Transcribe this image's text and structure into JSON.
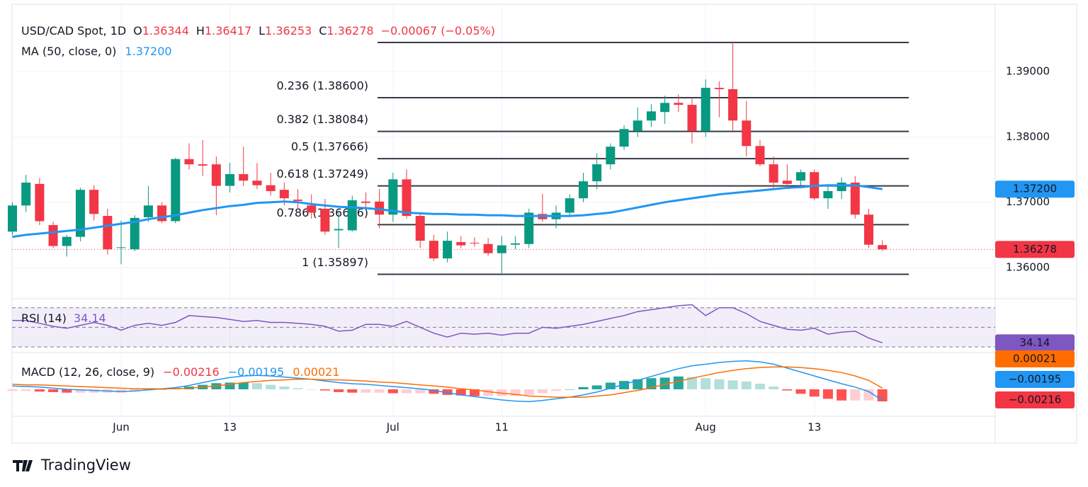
{
  "chart_data": {
    "type": "candlestick",
    "header": {
      "symbol": "USD/CAD Spot, 1D",
      "o_key": "O",
      "o": "1.36344",
      "h_key": "H",
      "h": "1.36417",
      "l_key": "L",
      "l": "1.36253",
      "c_key": "C",
      "c": "1.36278",
      "change": "−0.00067 (−0.05%)"
    },
    "categories": [
      null,
      null,
      null,
      null,
      null,
      null,
      null,
      null,
      "Jun",
      null,
      null,
      null,
      null,
      null,
      null,
      null,
      "13",
      null,
      null,
      null,
      null,
      null,
      null,
      null,
      null,
      null,
      null,
      null,
      "Jul",
      null,
      null,
      null,
      null,
      null,
      null,
      null,
      "11",
      null,
      null,
      null,
      null,
      null,
      null,
      null,
      null,
      null,
      null,
      null,
      null,
      null,
      null,
      "Aug",
      null,
      null,
      null,
      null,
      null,
      null,
      null,
      "13",
      null,
      null,
      null,
      null,
      null
    ],
    "candles": {
      "up_color": "#089981",
      "down_color": "#f23645",
      "open": [
        1.3655,
        1.3695,
        1.3728,
        1.3665,
        1.3633,
        1.3647,
        1.3719,
        1.3679,
        1.363,
        1.3628,
        1.3677,
        1.3695,
        1.3671,
        1.3766,
        1.3758,
        1.3758,
        1.3725,
        1.3743,
        1.3733,
        1.3726,
        1.3719,
        1.3704,
        1.3695,
        1.369,
        1.3657,
        1.3657,
        1.3701,
        1.3701,
        1.3681,
        1.3735,
        1.3679,
        1.3641,
        1.3614,
        1.3639,
        1.3638,
        1.3636,
        1.3622,
        1.3635,
        1.3636,
        1.3682,
        1.3674,
        1.3684,
        1.3706,
        1.3732,
        1.3758,
        1.3785,
        1.3809,
        1.3825,
        1.3838,
        1.3852,
        1.3849,
        1.3809,
        1.3875,
        1.3873,
        1.3825,
        1.3786,
        1.3758,
        1.3733,
        1.3733,
        1.3746,
        1.3706,
        1.3717,
        1.373,
        1.3681,
        1.36344
      ],
      "high": [
        1.37,
        1.3742,
        1.3737,
        1.367,
        1.365,
        1.3722,
        1.3726,
        1.369,
        1.3672,
        1.368,
        1.3725,
        1.37,
        1.3768,
        1.379,
        1.3795,
        1.377,
        1.376,
        1.3785,
        1.376,
        1.3745,
        1.373,
        1.372,
        1.3712,
        1.3705,
        1.3685,
        1.371,
        1.3715,
        1.372,
        1.3745,
        1.375,
        1.3685,
        1.365,
        1.3655,
        1.3648,
        1.3646,
        1.3645,
        1.3648,
        1.3648,
        1.369,
        1.3713,
        1.3695,
        1.3712,
        1.3745,
        1.3775,
        1.379,
        1.3818,
        1.3845,
        1.385,
        1.3863,
        1.3865,
        1.386,
        1.3888,
        1.3885,
        1.3946,
        1.3855,
        1.3795,
        1.377,
        1.3758,
        1.375,
        1.375,
        1.3725,
        1.3738,
        1.374,
        1.369,
        1.36417
      ],
      "low": [
        1.365,
        1.3685,
        1.3665,
        1.363,
        1.3617,
        1.364,
        1.3672,
        1.362,
        1.3605,
        1.3625,
        1.367,
        1.3668,
        1.3668,
        1.375,
        1.374,
        1.368,
        1.3715,
        1.3725,
        1.372,
        1.371,
        1.3695,
        1.369,
        1.3675,
        1.365,
        1.363,
        1.3655,
        1.369,
        1.366,
        1.367,
        1.3675,
        1.363,
        1.361,
        1.3608,
        1.363,
        1.3632,
        1.3618,
        1.359,
        1.3628,
        1.363,
        1.367,
        1.366,
        1.368,
        1.37,
        1.372,
        1.375,
        1.378,
        1.38,
        1.3815,
        1.382,
        1.3838,
        1.379,
        1.38,
        1.383,
        1.381,
        1.377,
        1.3755,
        1.372,
        1.3722,
        1.3725,
        1.3703,
        1.369,
        1.3705,
        1.3675,
        1.363,
        1.36253
      ],
      "close": [
        1.3695,
        1.373,
        1.3671,
        1.3633,
        1.3647,
        1.3719,
        1.3682,
        1.3628,
        1.3631,
        1.3676,
        1.3695,
        1.3671,
        1.3766,
        1.3758,
        1.3756,
        1.3725,
        1.3743,
        1.3733,
        1.3726,
        1.3717,
        1.3706,
        1.3702,
        1.3684,
        1.3655,
        1.3659,
        1.3703,
        1.3699,
        1.3681,
        1.3735,
        1.3679,
        1.3641,
        1.3614,
        1.3641,
        1.3634,
        1.3637,
        1.3622,
        1.3634,
        1.3637,
        1.3684,
        1.3674,
        1.3684,
        1.3706,
        1.3732,
        1.3758,
        1.3785,
        1.3812,
        1.3825,
        1.3839,
        1.3852,
        1.3849,
        1.3809,
        1.3875,
        1.3873,
        1.3825,
        1.3786,
        1.3758,
        1.373,
        1.3728,
        1.3746,
        1.3706,
        1.3717,
        1.373,
        1.3681,
        1.3635,
        1.36278
      ]
    },
    "last_price": {
      "value": 1.36278,
      "label": "1.36278",
      "color": "#f23645"
    },
    "ma": {
      "name": "MA (50, close, 0)",
      "color": "#2196f3",
      "last": {
        "value": 1.372,
        "label": "1.37200"
      },
      "values": [
        1.3647,
        1.365,
        1.3652,
        1.3654,
        1.3656,
        1.3658,
        1.3661,
        1.3664,
        1.3667,
        1.367,
        1.3674,
        1.3677,
        1.368,
        1.3684,
        1.3688,
        1.3691,
        1.3694,
        1.3696,
        1.3699,
        1.37,
        1.3701,
        1.37,
        1.3697,
        1.3695,
        1.3693,
        1.3692,
        1.3691,
        1.3689,
        1.3687,
        1.3684,
        1.3683,
        1.3682,
        1.3682,
        1.3681,
        1.3681,
        1.368,
        1.368,
        1.3679,
        1.3679,
        1.3679,
        1.3679,
        1.3679,
        1.368,
        1.3682,
        1.3684,
        1.3688,
        1.3692,
        1.3696,
        1.37,
        1.3703,
        1.3706,
        1.3709,
        1.3712,
        1.3714,
        1.3716,
        1.3718,
        1.372,
        1.3722,
        1.3723,
        1.3725,
        1.3726,
        1.3726,
        1.3726,
        1.3723,
        1.372
      ]
    },
    "fib": {
      "color": "#363a45",
      "levels": [
        {
          "value": 1.39444
        },
        {
          "value": 1.386,
          "label": "0.236 (1.38600)"
        },
        {
          "value": 1.38084,
          "label": "0.382 (1.38084)"
        },
        {
          "value": 1.37666,
          "label": "0.5 (1.37666)"
        },
        {
          "value": 1.37249,
          "label": "0.618 (1.37249)"
        },
        {
          "value": 1.36656,
          "label": "0.786 (1.36656)"
        },
        {
          "value": 1.35897,
          "label": "1 (1.35897)"
        }
      ]
    },
    "ylim": [
      1.35545,
      1.39986
    ],
    "yticks": [
      {
        "value": 1.39,
        "label": "1.39000"
      },
      {
        "value": 1.38,
        "label": "1.38000"
      },
      {
        "value": 1.37,
        "label": "1.37000"
      },
      {
        "value": 1.36,
        "label": "1.36000"
      }
    ],
    "rsi": {
      "name": "RSI (14)",
      "color": "#7e57c2",
      "last": {
        "value": 34.14,
        "label": "34.14"
      },
      "ylim": [
        25,
        77
      ],
      "levels": [
        70,
        50,
        30
      ],
      "values": [
        57,
        57,
        54,
        51,
        49,
        52,
        55,
        52,
        47,
        52,
        54,
        52,
        55,
        62,
        61,
        60,
        58,
        56,
        57,
        55,
        55,
        54,
        53,
        51,
        46,
        47,
        53,
        53,
        51,
        56,
        50,
        44,
        40,
        44,
        43,
        44,
        42,
        44,
        44,
        50,
        49,
        51,
        53,
        56,
        59,
        62,
        66,
        68,
        70,
        72,
        73,
        62,
        70,
        70,
        64,
        56,
        52,
        48,
        47,
        49,
        43,
        45,
        46,
        39,
        34.14
      ]
    },
    "macd": {
      "name": "MACD (12, 26, close, 9)",
      "ylim": [
        -0.0095,
        0.0057
      ],
      "hist_colors": [
        "#26a69a",
        "#b2dfdb",
        "#ffcdd2",
        "#ff5252"
      ],
      "histogram": {
        "color": "#f23645",
        "last": {
          "value": -0.00216,
          "label": "−0.00216"
        },
        "values": [
          -0.0003,
          -0.0003,
          -0.0004,
          -0.0005,
          -0.0006,
          -0.0006,
          -0.0006,
          -0.0006,
          -0.0006,
          -0.0004,
          -0.0002,
          0,
          0.0002,
          0.0005,
          0.0008,
          0.0011,
          0.0012,
          0.0012,
          0.0011,
          0.0008,
          0.0005,
          0.0002,
          0,
          -0.0002,
          -0.0005,
          -0.0006,
          -0.0006,
          -0.0006,
          -0.0007,
          -0.0007,
          -0.0007,
          -0.0008,
          -0.001,
          -0.0011,
          -0.0012,
          -0.0012,
          -0.0012,
          -0.0012,
          -0.001,
          -0.0007,
          -0.0003,
          0,
          0.0004,
          0.0007,
          0.0012,
          0.0015,
          0.0018,
          0.002,
          0.0021,
          0.0023,
          0.0022,
          0.002,
          0.0018,
          0.0016,
          0.0014,
          0.001,
          0.0005,
          -0.0002,
          -0.0008,
          -0.0013,
          -0.0017,
          -0.002,
          -0.002,
          -0.002,
          -0.00216
        ]
      },
      "macd_line": {
        "color": "#2196f3",
        "last": {
          "value": -0.00195,
          "label": "−0.00195"
        },
        "values": [
          0.0006,
          0.0005,
          0.0004,
          0.0002,
          0,
          -0.0001,
          -0.0002,
          -0.0003,
          -0.0004,
          -0.0003,
          -0.0001,
          0.0001,
          0.0003,
          0.0007,
          0.0012,
          0.0017,
          0.0021,
          0.0024,
          0.0025,
          0.0024,
          0.0022,
          0.002,
          0.0018,
          0.0015,
          0.0012,
          0.001,
          0.0009,
          0.0007,
          0.0005,
          0.0003,
          0.0001,
          -0.0002,
          -0.0006,
          -0.001,
          -0.0013,
          -0.0016,
          -0.0019,
          -0.0021,
          -0.0022,
          -0.002,
          -0.0017,
          -0.0014,
          -0.001,
          -0.0005,
          0.0002,
          0.0009,
          0.0016,
          0.0023,
          0.003,
          0.0037,
          0.0042,
          0.0045,
          0.0048,
          0.005,
          0.0051,
          0.0049,
          0.0045,
          0.0038,
          0.0031,
          0.0024,
          0.0017,
          0.001,
          0.0004,
          -0.0004,
          -0.00195
        ]
      },
      "signal_line": {
        "color": "#ff6d00",
        "last": {
          "value": 0.00021,
          "label": "0.00021"
        },
        "values": [
          0.0009,
          0.0008,
          0.0008,
          0.0007,
          0.0006,
          0.0005,
          0.0004,
          0.0003,
          0.0002,
          0.0001,
          0.0001,
          0.0001,
          0.0001,
          0.0002,
          0.0004,
          0.0006,
          0.0009,
          0.0012,
          0.0014,
          0.0016,
          0.0017,
          0.0018,
          0.0018,
          0.0017,
          0.0017,
          0.0016,
          0.0015,
          0.0013,
          0.0012,
          0.001,
          0.0008,
          0.0006,
          0.0004,
          0.0001,
          -0.0001,
          -0.0004,
          -0.0007,
          -0.0009,
          -0.0012,
          -0.0013,
          -0.0014,
          -0.0014,
          -0.0014,
          -0.0012,
          -0.001,
          -0.0006,
          -0.0002,
          0.0003,
          0.0009,
          0.0014,
          0.002,
          0.0025,
          0.003,
          0.0034,
          0.0037,
          0.0039,
          0.004,
          0.004,
          0.0039,
          0.0037,
          0.0034,
          0.003,
          0.0024,
          0.0016,
          0.00021
        ]
      }
    },
    "brand": "TradingView"
  }
}
